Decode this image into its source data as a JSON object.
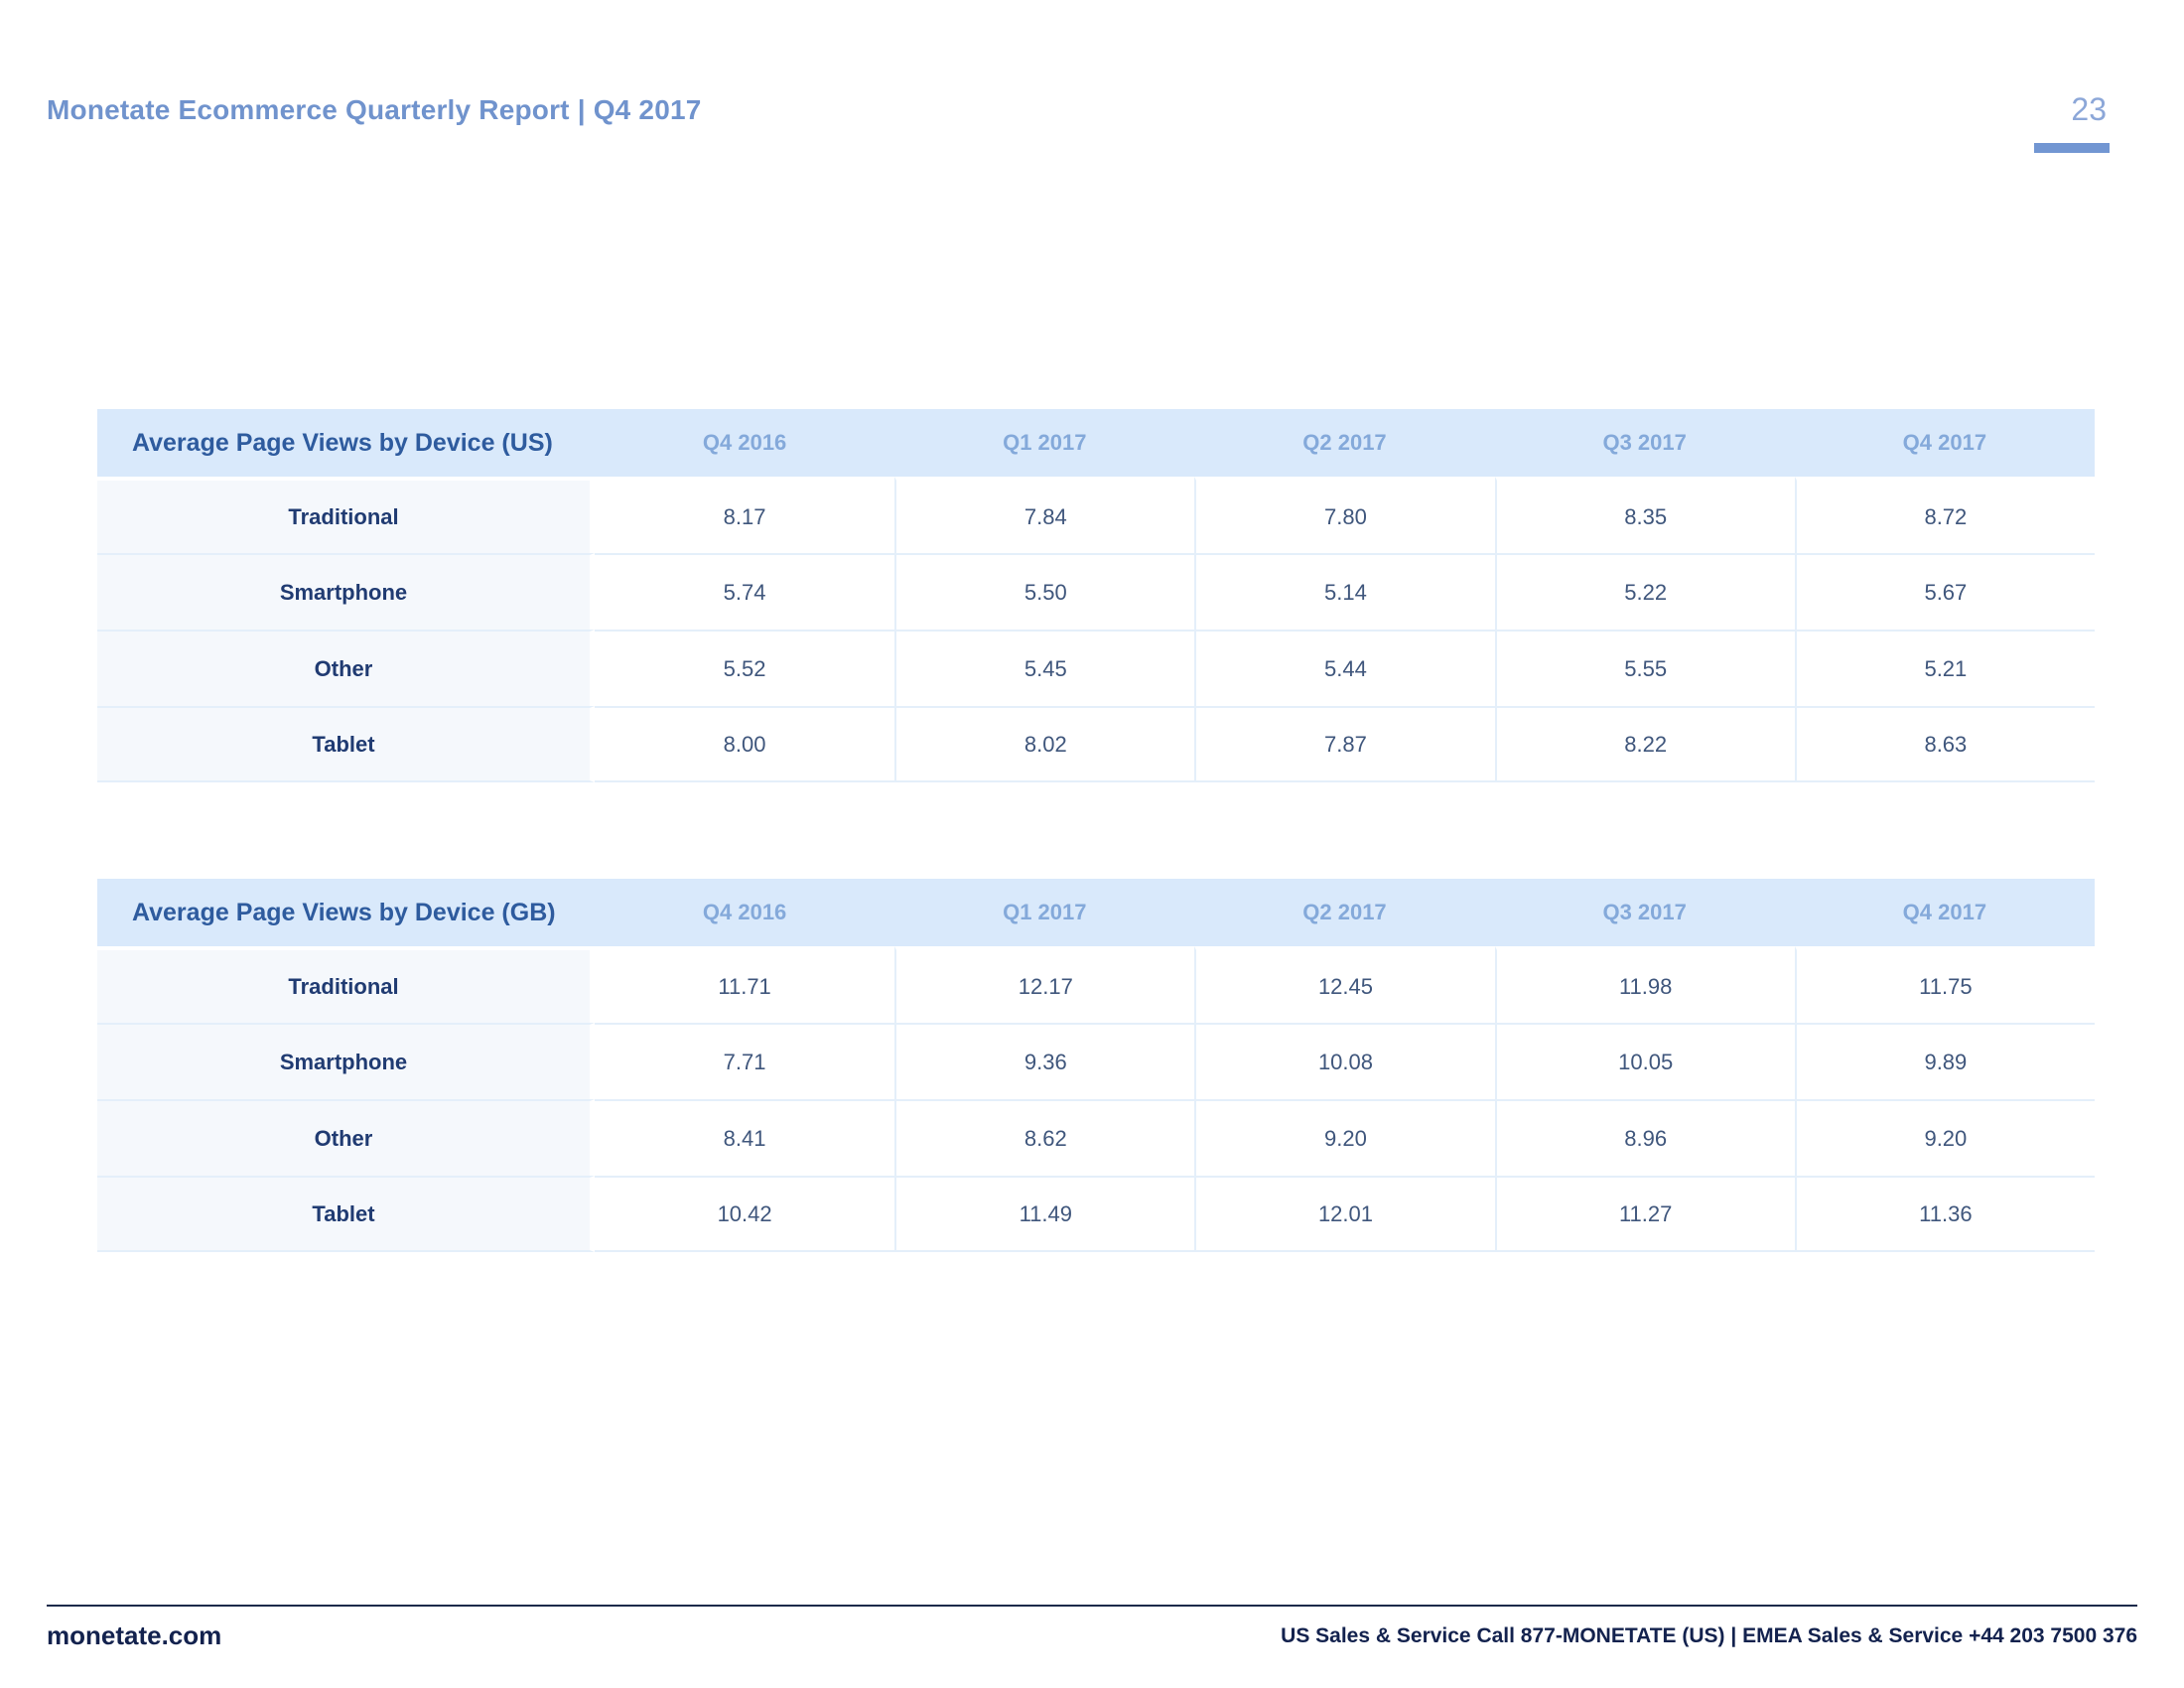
{
  "header": {
    "title": "Monetate Ecommerce Quarterly Report | Q4 2017",
    "page_number": "23"
  },
  "colors": {
    "header_title_blue": "#7093cd",
    "page_number_blue": "#8ca7d8",
    "page_bar_blue": "#7296d2",
    "table_header_bg": "#d9e9fb",
    "table_title_text": "#2e5b9e",
    "quarter_header_text": "#84a9da",
    "row_label_bg": "#f5f8fc",
    "row_label_text": "#203b72",
    "value_text": "#3f567c",
    "footer_text": "#13224e"
  },
  "tables": [
    {
      "title": "Average Page Views by Device (US)",
      "columns": [
        "Q4 2016",
        "Q1 2017",
        "Q2 2017",
        "Q3 2017",
        "Q4 2017"
      ],
      "rows": [
        {
          "label": "Traditional",
          "values": [
            "8.17",
            "7.84",
            "7.80",
            "8.35",
            "8.72"
          ]
        },
        {
          "label": "Smartphone",
          "values": [
            "5.74",
            "5.50",
            "5.14",
            "5.22",
            "5.67"
          ]
        },
        {
          "label": "Other",
          "values": [
            "5.52",
            "5.45",
            "5.44",
            "5.55",
            "5.21"
          ]
        },
        {
          "label": "Tablet",
          "values": [
            "8.00",
            "8.02",
            "7.87",
            "8.22",
            "8.63"
          ]
        }
      ]
    },
    {
      "title": "Average Page Views by Device (GB)",
      "columns": [
        "Q4 2016",
        "Q1 2017",
        "Q2 2017",
        "Q3 2017",
        "Q4 2017"
      ],
      "rows": [
        {
          "label": "Traditional",
          "values": [
            "11.71",
            "12.17",
            "12.45",
            "11.98",
            "11.75"
          ]
        },
        {
          "label": "Smartphone",
          "values": [
            "7.71",
            "9.36",
            "10.08",
            "10.05",
            "9.89"
          ]
        },
        {
          "label": "Other",
          "values": [
            "8.41",
            "8.62",
            "9.20",
            "8.96",
            "9.20"
          ]
        },
        {
          "label": "Tablet",
          "values": [
            "10.42",
            "11.49",
            "12.01",
            "11.27",
            "11.36"
          ]
        }
      ]
    }
  ],
  "chart_data": [
    {
      "type": "table",
      "title": "Average Page Views by Device (US)",
      "categories": [
        "Q4 2016",
        "Q1 2017",
        "Q2 2017",
        "Q3 2017",
        "Q4 2017"
      ],
      "series": [
        {
          "name": "Traditional",
          "values": [
            8.17,
            7.84,
            7.8,
            8.35,
            8.72
          ]
        },
        {
          "name": "Smartphone",
          "values": [
            5.74,
            5.5,
            5.14,
            5.22,
            5.67
          ]
        },
        {
          "name": "Other",
          "values": [
            5.52,
            5.45,
            5.44,
            5.55,
            5.21
          ]
        },
        {
          "name": "Tablet",
          "values": [
            8.0,
            8.02,
            7.87,
            8.22,
            8.63
          ]
        }
      ]
    },
    {
      "type": "table",
      "title": "Average Page Views by Device (GB)",
      "categories": [
        "Q4 2016",
        "Q1 2017",
        "Q2 2017",
        "Q3 2017",
        "Q4 2017"
      ],
      "series": [
        {
          "name": "Traditional",
          "values": [
            11.71,
            12.17,
            12.45,
            11.98,
            11.75
          ]
        },
        {
          "name": "Smartphone",
          "values": [
            7.71,
            9.36,
            10.08,
            10.05,
            9.89
          ]
        },
        {
          "name": "Other",
          "values": [
            8.41,
            8.62,
            9.2,
            8.96,
            9.2
          ]
        },
        {
          "name": "Tablet",
          "values": [
            10.42,
            11.49,
            12.01,
            11.27,
            11.36
          ]
        }
      ]
    }
  ],
  "footer": {
    "site": "monetate.com",
    "contact": "US Sales & Service Call 877-MONETATE (US) | EMEA Sales & Service +44 203 7500 376"
  }
}
